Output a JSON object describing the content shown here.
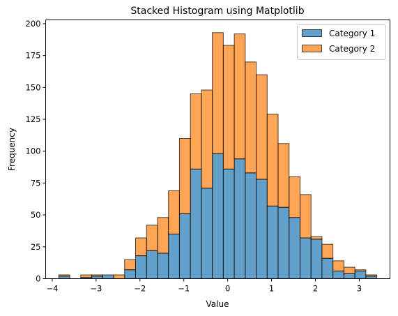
{
  "chart_data": {
    "type": "bar",
    "stacked": true,
    "title": "Stacked Histogram using Matplotlib",
    "xlabel": "Value",
    "ylabel": "Frequency",
    "xlim": [
      -4.15,
      3.7
    ],
    "ylim": [
      0,
      203
    ],
    "xticks": [
      -4,
      -3,
      -2,
      -1,
      0,
      1,
      2,
      3
    ],
    "yticks": [
      0,
      25,
      50,
      75,
      100,
      125,
      150,
      175,
      200
    ],
    "legend_position": "top-right",
    "bin_edges": [
      -3.85,
      -3.6,
      -3.35,
      -3.1,
      -2.85,
      -2.6,
      -2.35,
      -2.1,
      -1.85,
      -1.6,
      -1.35,
      -1.1,
      -0.85,
      -0.6,
      -0.35,
      -0.1,
      0.15,
      0.4,
      0.65,
      0.9,
      1.15,
      1.4,
      1.65,
      1.9,
      2.15,
      2.4,
      2.65,
      2.9,
      3.15,
      3.4
    ],
    "series": [
      {
        "name": "Category 1",
        "color": "#1f77b4",
        "values": [
          2,
          0,
          1,
          2,
          3,
          0,
          7,
          18,
          22,
          20,
          35,
          51,
          86,
          71,
          98,
          86,
          94,
          83,
          78,
          57,
          56,
          48,
          32,
          31,
          16,
          6,
          4,
          6,
          2,
          0
        ]
      },
      {
        "name": "Category 2",
        "color": "#ff7f0e",
        "values": [
          1,
          0,
          2,
          1,
          0,
          3,
          8,
          14,
          20,
          28,
          34,
          59,
          59,
          77,
          95,
          97,
          98,
          87,
          82,
          72,
          50,
          32,
          34,
          2,
          11,
          8,
          5,
          1,
          1,
          2
        ]
      }
    ]
  }
}
